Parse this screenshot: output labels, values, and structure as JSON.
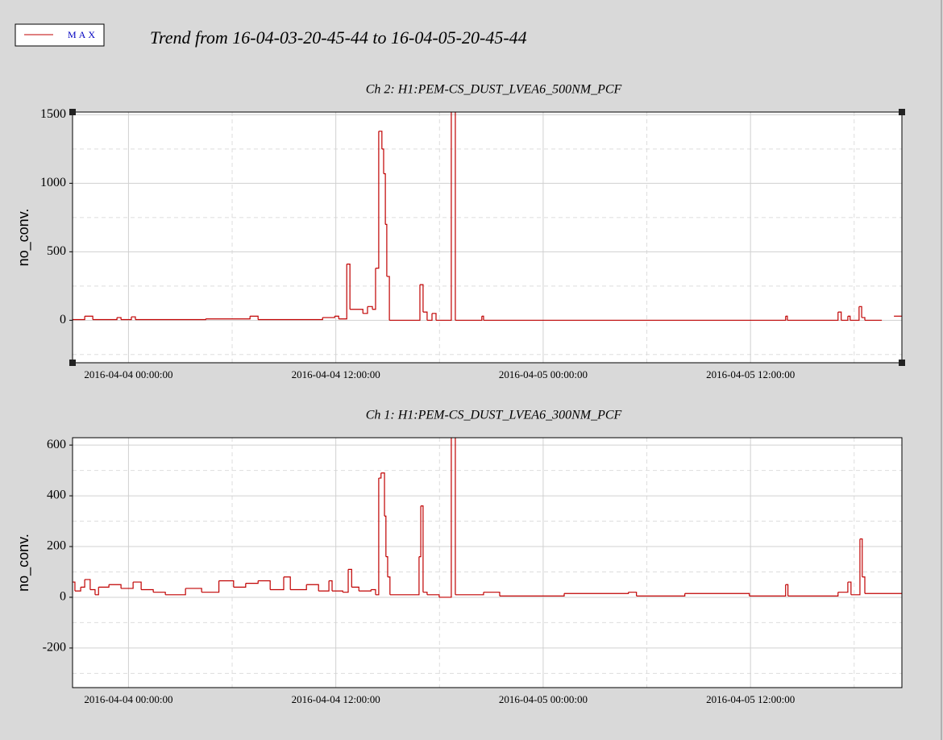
{
  "title": "Trend from 16-04-03-20-45-44 to 16-04-05-20-45-44",
  "chart_data": [
    {
      "type": "line",
      "title": "Ch 2: H1:PEM-CS_DUST_LVEA6_500NM_PCF",
      "ylabel": "no_conv.",
      "xlim": [
        "2016-04-03 20:45:44",
        "2016-04-05 20:45:44"
      ],
      "xticks": [
        "2016-04-04 00:00:00",
        "2016-04-04 12:00:00",
        "2016-04-05 00:00:00",
        "2016-04-05 12:00:00"
      ],
      "xminor": [
        "2016-04-04 06:00:00",
        "2016-04-04 18:00:00",
        "2016-04-05 06:00:00",
        "2016-04-05 18:00:00"
      ],
      "ylim": [
        -310,
        1520
      ],
      "yticks": [
        0,
        500,
        1000,
        1500
      ],
      "yminor": [
        -250,
        250,
        750,
        1250
      ],
      "grid": true,
      "x": [
        "2016-04-03 20:46",
        "2016-04-03 21:28",
        "2016-04-03 21:56",
        "2016-04-03 23:20",
        "2016-04-03 23:34",
        "2016-04-04 00:10",
        "2016-04-04 00:24",
        "2016-04-04 04:28",
        "2016-04-04 07:02",
        "2016-04-04 07:30",
        "2016-04-04 11:14",
        "2016-04-04 11:56",
        "2016-04-04 12:10",
        "2016-04-04 12:38",
        "2016-04-04 12:49",
        "2016-04-04 13:34",
        "2016-04-04 13:50",
        "2016-04-04 14:07",
        "2016-04-04 14:18",
        "2016-04-04 14:29",
        "2016-04-04 14:40",
        "2016-04-04 14:46",
        "2016-04-04 14:52",
        "2016-04-04 14:57",
        "2016-04-04 15:06",
        "2016-04-04 16:52",
        "2016-04-04 17:03",
        "2016-04-04 17:17",
        "2016-04-04 17:34",
        "2016-04-04 17:48",
        "2016-04-04 18:41",
        "2016-04-04 18:55",
        "2016-04-04 20:27",
        "2016-04-04 20:33",
        "2016-04-05 14:02",
        "2016-04-05 14:08",
        "2016-04-05 17:04",
        "2016-04-05 17:15",
        "2016-04-05 17:38",
        "2016-04-05 17:46",
        "2016-04-05 18:17",
        "2016-04-05 18:26",
        "2016-04-05 18:37",
        "2016-04-05 19:36",
        "2016-04-05 20:18"
      ],
      "series": [
        {
          "name": "MAX",
          "color": "#c00000",
          "values": [
            5,
            30,
            5,
            20,
            5,
            25,
            5,
            10,
            30,
            5,
            20,
            30,
            10,
            410,
            80,
            50,
            100,
            80,
            380,
            1380,
            1250,
            1070,
            700,
            320,
            0,
            260,
            60,
            0,
            50,
            0,
            1600,
            0,
            30,
            0,
            30,
            0,
            60,
            0,
            30,
            0,
            100,
            20,
            0,
            null,
            30
          ]
        }
      ]
    },
    {
      "type": "line",
      "title": "Ch 1: H1:PEM-CS_DUST_LVEA6_300NM_PCF",
      "ylabel": "no_conv.",
      "xlim": [
        "2016-04-03 20:45:44",
        "2016-04-05 20:45:44"
      ],
      "xticks": [
        "2016-04-04 00:00:00",
        "2016-04-04 12:00:00",
        "2016-04-05 00:00:00",
        "2016-04-05 12:00:00"
      ],
      "xminor": [
        "2016-04-04 06:00:00",
        "2016-04-04 18:00:00",
        "2016-04-05 06:00:00",
        "2016-04-05 18:00:00"
      ],
      "ylim": [
        -356,
        629
      ],
      "yticks": [
        -200,
        0,
        200,
        400,
        600
      ],
      "yminor": [
        -300,
        -100,
        100,
        300,
        500
      ],
      "grid": true,
      "x": [
        "2016-04-03 20:46",
        "2016-04-03 20:54",
        "2016-04-03 21:14",
        "2016-04-03 21:28",
        "2016-04-03 21:47",
        "2016-04-03 22:04",
        "2016-04-03 22:16",
        "2016-04-03 22:52",
        "2016-04-03 23:34",
        "2016-04-04 00:16",
        "2016-04-04 00:44",
        "2016-04-04 01:26",
        "2016-04-04 02:08",
        "2016-04-04 03:18",
        "2016-04-04 04:14",
        "2016-04-04 05:14",
        "2016-04-04 06:05",
        "2016-04-04 06:47",
        "2016-04-04 07:30",
        "2016-04-04 08:12",
        "2016-04-04 08:59",
        "2016-04-04 09:22",
        "2016-04-04 10:18",
        "2016-04-04 11:00",
        "2016-04-04 11:36",
        "2016-04-04 11:47",
        "2016-04-04 12:24",
        "2016-04-04 12:43",
        "2016-04-04 12:55",
        "2016-04-04 13:20",
        "2016-04-04 14:02",
        "2016-04-04 14:18",
        "2016-04-04 14:29",
        "2016-04-04 14:37",
        "2016-04-04 14:49",
        "2016-04-04 14:54",
        "2016-04-04 15:00",
        "2016-04-04 15:08",
        "2016-04-04 16:49",
        "2016-04-04 16:55",
        "2016-04-04 17:03",
        "2016-04-04 17:17",
        "2016-04-04 17:59",
        "2016-04-04 18:41",
        "2016-04-04 18:55",
        "2016-04-04 20:33",
        "2016-04-04 21:29",
        "2016-04-05 01:13",
        "2016-04-05 04:56",
        "2016-04-05 05:24",
        "2016-04-05 08:12",
        "2016-04-05 11:56",
        "2016-04-05 14:02",
        "2016-04-05 14:10",
        "2016-04-05 17:04",
        "2016-04-05 17:38",
        "2016-04-05 17:49",
        "2016-04-05 18:20",
        "2016-04-05 18:28",
        "2016-04-05 18:37"
      ],
      "series": [
        {
          "name": "MAX",
          "color": "#c00000",
          "values": [
            60,
            25,
            40,
            70,
            30,
            10,
            40,
            50,
            35,
            60,
            30,
            20,
            10,
            35,
            20,
            65,
            40,
            55,
            65,
            30,
            80,
            30,
            50,
            25,
            65,
            25,
            20,
            110,
            40,
            25,
            30,
            10,
            470,
            490,
            320,
            160,
            80,
            10,
            160,
            360,
            20,
            10,
            0,
            700,
            10,
            20,
            5,
            15,
            20,
            5,
            15,
            5,
            50,
            5,
            20,
            60,
            10,
            230,
            80,
            15
          ]
        }
      ]
    }
  ]
}
